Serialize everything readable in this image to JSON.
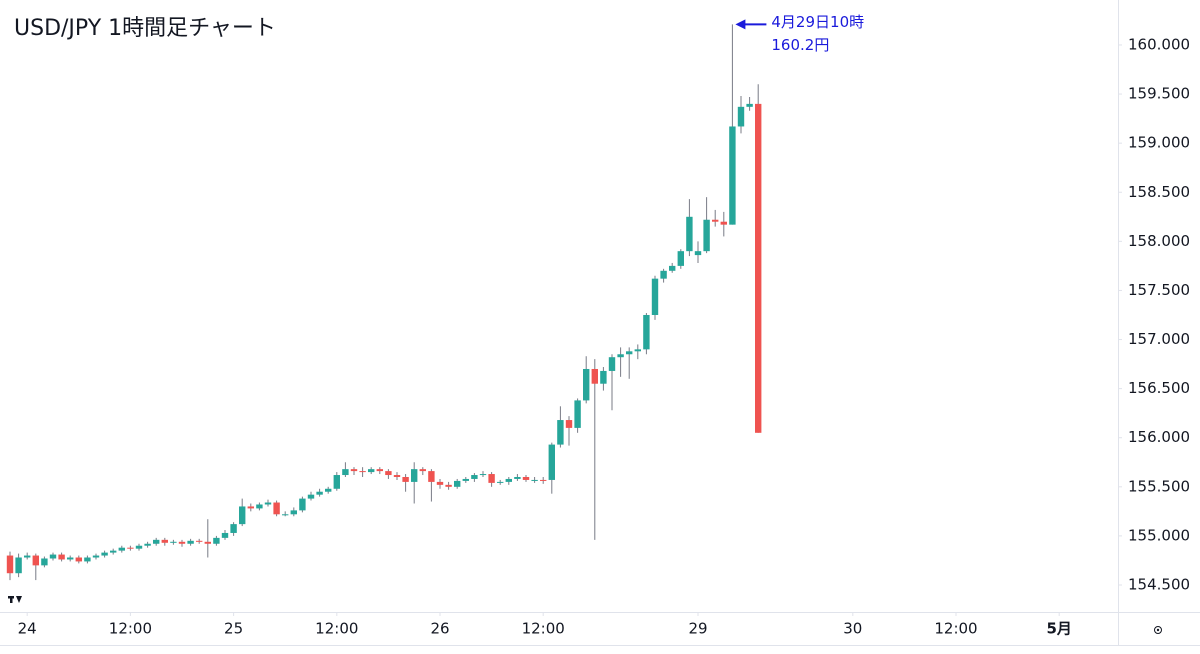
{
  "chart_data": {
    "type": "candlestick",
    "title": "USD/JPY 1時間足チャート",
    "annotation": {
      "lines": [
        "4月29日10時",
        "160.2円"
      ],
      "color": "#1a1adb"
    },
    "xlim": [
      -1,
      129
    ],
    "xticks": [
      {
        "value": 2,
        "label": "24"
      },
      {
        "value": 14,
        "label": "12:00"
      },
      {
        "value": 26,
        "label": "25"
      },
      {
        "value": 38,
        "label": "12:00"
      },
      {
        "value": 50,
        "label": "26"
      },
      {
        "value": 62,
        "label": "12:00"
      },
      {
        "value": 80,
        "label": "29"
      },
      {
        "value": 98,
        "label": "30"
      },
      {
        "value": 110,
        "label": "12:00"
      },
      {
        "value": 122,
        "label": "5月"
      }
    ],
    "ylim": [
      154.225,
      160.458
    ],
    "yticks": [
      {
        "value": 154.5,
        "label": "154.500"
      },
      {
        "value": 155,
        "label": "155.000"
      },
      {
        "value": 155.5,
        "label": "155.500"
      },
      {
        "value": 156,
        "label": "156.000"
      },
      {
        "value": 156.5,
        "label": "156.500"
      },
      {
        "value": 157,
        "label": "157.000"
      },
      {
        "value": 157.5,
        "label": "157.500"
      },
      {
        "value": 158,
        "label": "158.000"
      },
      {
        "value": 158.5,
        "label": "158.500"
      },
      {
        "value": 159,
        "label": "159.000"
      },
      {
        "value": 159.5,
        "label": "159.500"
      },
      {
        "value": 160,
        "label": "160.000"
      }
    ],
    "up_color": "#26a69a",
    "down_color": "#ef5350",
    "series": [
      {
        "open": [
          154.8,
          154.62,
          154.78,
          154.8,
          154.7,
          154.77,
          154.81,
          154.76,
          154.78,
          154.74,
          154.78,
          154.8,
          154.83,
          154.85,
          154.88,
          154.87,
          154.9,
          154.92,
          154.96,
          154.93,
          154.94,
          154.92,
          154.95,
          154.94,
          154.92,
          154.98,
          155.03,
          155.12,
          155.3,
          155.28,
          155.32,
          155.34,
          155.22,
          155.22,
          155.26,
          155.38,
          155.42,
          155.45,
          155.48,
          155.62,
          155.68,
          155.66,
          155.65,
          155.68,
          155.66,
          155.62,
          155.6,
          155.55,
          155.68,
          155.66,
          155.55,
          155.52,
          155.5,
          155.56,
          155.58,
          155.62,
          155.63,
          155.54,
          155.55,
          155.58,
          155.6,
          155.57,
          155.57,
          155.57,
          155.93,
          156.18,
          156.1,
          156.38,
          156.7,
          156.55,
          156.68,
          156.82,
          156.85,
          156.88,
          156.9,
          157.25,
          157.62,
          157.7,
          157.75,
          157.9,
          157.86,
          157.9,
          158.22,
          158.2,
          158.17,
          159.17,
          159.37,
          159.4
        ],
        "high": [
          154.84,
          154.82,
          154.83,
          154.82,
          154.79,
          154.83,
          154.83,
          154.8,
          154.8,
          154.8,
          154.82,
          154.85,
          154.87,
          154.9,
          154.9,
          154.92,
          154.94,
          154.98,
          154.98,
          154.96,
          154.96,
          154.97,
          154.97,
          155.17,
          155.0,
          155.06,
          155.14,
          155.38,
          155.33,
          155.34,
          155.37,
          155.36,
          155.25,
          155.29,
          155.4,
          155.45,
          155.48,
          155.5,
          155.65,
          155.75,
          155.7,
          155.7,
          155.7,
          155.7,
          155.68,
          155.65,
          155.63,
          155.75,
          155.7,
          155.68,
          155.58,
          155.55,
          155.58,
          155.6,
          155.64,
          155.66,
          155.65,
          155.57,
          155.6,
          155.63,
          155.62,
          155.6,
          155.6,
          155.95,
          156.32,
          156.22,
          156.4,
          156.83,
          156.8,
          156.72,
          156.85,
          156.92,
          156.92,
          156.95,
          157.27,
          157.65,
          157.72,
          157.78,
          157.92,
          158.43,
          158.0,
          158.45,
          158.32,
          158.3,
          160.21,
          159.48,
          159.47,
          159.6
        ],
        "low": [
          154.55,
          154.58,
          154.76,
          154.55,
          154.68,
          154.75,
          154.74,
          154.74,
          154.72,
          154.72,
          154.76,
          154.78,
          154.81,
          154.83,
          154.85,
          154.85,
          154.88,
          154.9,
          154.9,
          154.91,
          154.89,
          154.9,
          154.92,
          154.78,
          154.9,
          154.96,
          155.0,
          155.1,
          155.25,
          155.26,
          155.3,
          155.2,
          155.2,
          155.2,
          155.24,
          155.36,
          155.4,
          155.43,
          155.46,
          155.6,
          155.62,
          155.6,
          155.63,
          155.63,
          155.58,
          155.57,
          155.45,
          155.33,
          155.62,
          155.35,
          155.48,
          155.47,
          155.48,
          155.54,
          155.55,
          155.6,
          155.5,
          155.52,
          155.52,
          155.56,
          155.55,
          155.54,
          155.53,
          155.43,
          155.9,
          155.92,
          156.05,
          156.35,
          154.96,
          156.48,
          156.28,
          156.62,
          156.6,
          156.8,
          156.85,
          157.2,
          157.58,
          157.68,
          157.72,
          157.85,
          157.78,
          157.88,
          158.15,
          158.05,
          158.17,
          159.1,
          159.33,
          156.05
        ],
        "close": [
          154.62,
          154.78,
          154.8,
          154.7,
          154.77,
          154.81,
          154.76,
          154.78,
          154.74,
          154.78,
          154.8,
          154.83,
          154.85,
          154.88,
          154.87,
          154.9,
          154.92,
          154.96,
          154.93,
          154.94,
          154.92,
          154.95,
          154.94,
          154.92,
          154.98,
          155.03,
          155.12,
          155.3,
          155.28,
          155.32,
          155.34,
          155.22,
          155.22,
          155.26,
          155.38,
          155.42,
          155.45,
          155.48,
          155.62,
          155.68,
          155.66,
          155.65,
          155.68,
          155.66,
          155.62,
          155.6,
          155.55,
          155.68,
          155.66,
          155.55,
          155.52,
          155.5,
          155.56,
          155.58,
          155.62,
          155.63,
          155.54,
          155.55,
          155.58,
          155.6,
          155.57,
          155.57,
          155.56,
          155.93,
          156.18,
          156.1,
          156.38,
          156.7,
          156.55,
          156.68,
          156.82,
          156.85,
          156.88,
          156.9,
          157.25,
          157.62,
          157.7,
          157.75,
          157.9,
          158.25,
          157.9,
          158.22,
          158.2,
          158.17,
          159.17,
          159.37,
          159.4,
          156.05
        ]
      }
    ]
  }
}
